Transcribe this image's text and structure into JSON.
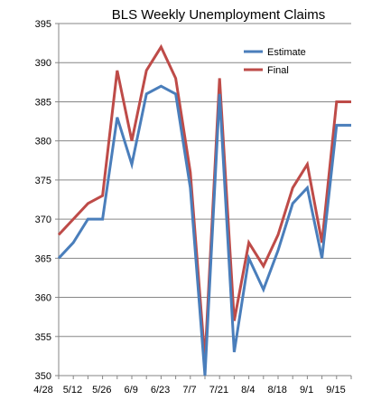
{
  "chart_data": {
    "type": "line",
    "title": "BLS Weekly Unemployment Claims",
    "xlabel": "",
    "ylabel": "",
    "ylim": [
      350,
      395
    ],
    "y_ticks": [
      350,
      355,
      360,
      365,
      370,
      375,
      380,
      385,
      390,
      395
    ],
    "x_tick_labels": [
      "4/28",
      "5/12",
      "5/26",
      "6/9",
      "6/23",
      "7/7",
      "7/21",
      "8/4",
      "8/18",
      "9/1",
      "9/15"
    ],
    "legend_position": "top-right",
    "grid": {
      "horizontal": true,
      "vertical": false
    },
    "series": [
      {
        "name": "Estimate",
        "color": "#4a7ebb",
        "values": [
          365,
          367,
          370,
          370,
          383,
          377,
          386,
          387,
          386,
          374,
          350,
          386,
          353,
          365,
          361,
          366,
          372,
          374,
          365,
          382,
          382
        ]
      },
      {
        "name": "Final",
        "color": "#be4b48",
        "values": [
          368,
          370,
          372,
          373,
          389,
          380,
          389,
          392,
          388,
          376,
          352,
          388,
          357,
          367,
          364,
          368,
          374,
          377,
          367,
          385,
          385
        ]
      }
    ]
  }
}
